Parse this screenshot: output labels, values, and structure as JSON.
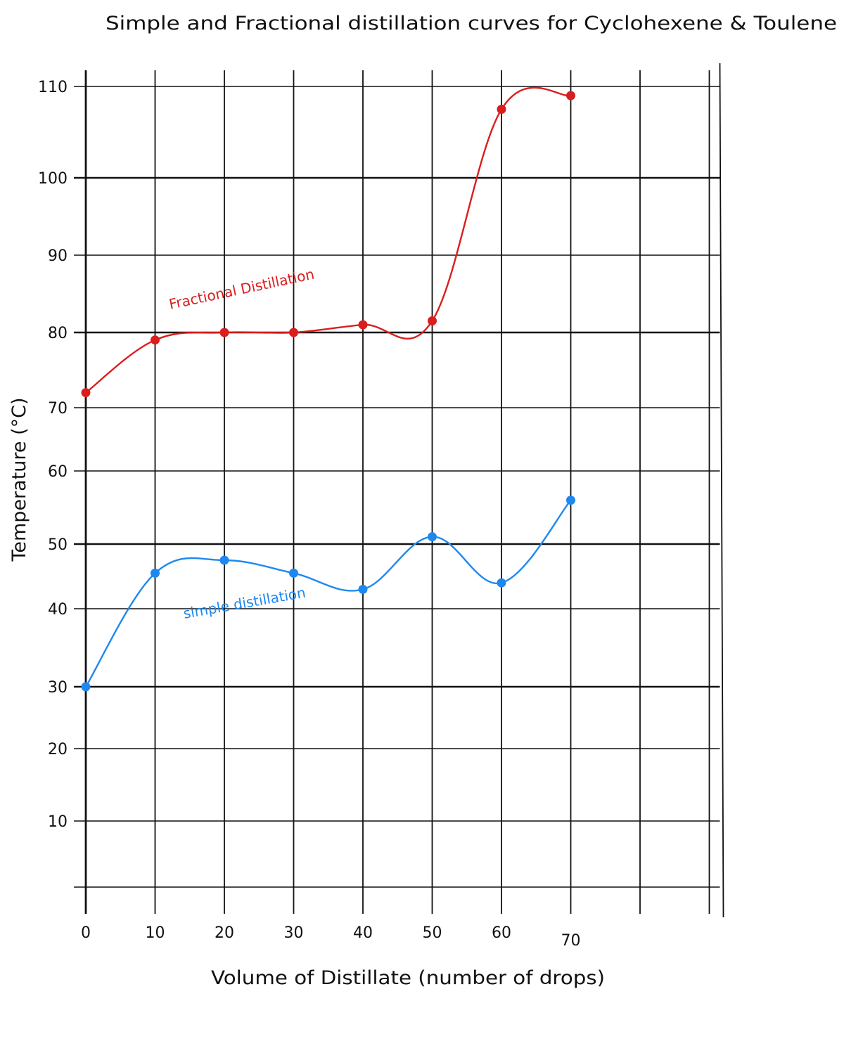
{
  "chart_data": {
    "type": "line",
    "title": "Simple and Fractional distillation curves for Cyclohexene & Toulene",
    "xlabel": "Volume of Distillate (number of drops)",
    "ylabel": "Temperature (°C)",
    "x_ticks": [
      "0",
      "10",
      "20",
      "30",
      "40",
      "50",
      "60",
      "70"
    ],
    "y_ticks": [
      "10",
      "20",
      "30",
      "40",
      "50",
      "60",
      "70",
      "80",
      "90",
      "100",
      "110"
    ],
    "xlim": [
      0,
      90
    ],
    "ylim": [
      0,
      110
    ],
    "grid": true,
    "legend": "inline labels",
    "series": [
      {
        "name": "Fractional Distillation",
        "color": "#d91e1e",
        "x": [
          0,
          10,
          20,
          30,
          40,
          50,
          60,
          70
        ],
        "y": [
          72,
          79,
          80,
          80,
          81,
          81.5,
          107.5,
          109
        ]
      },
      {
        "name": "simple distillation",
        "color": "#1e88f0",
        "x": [
          0,
          10,
          20,
          30,
          40,
          50,
          60,
          70
        ],
        "y": [
          30,
          45.5,
          47.5,
          45.5,
          43,
          51,
          44,
          56
        ]
      }
    ]
  }
}
